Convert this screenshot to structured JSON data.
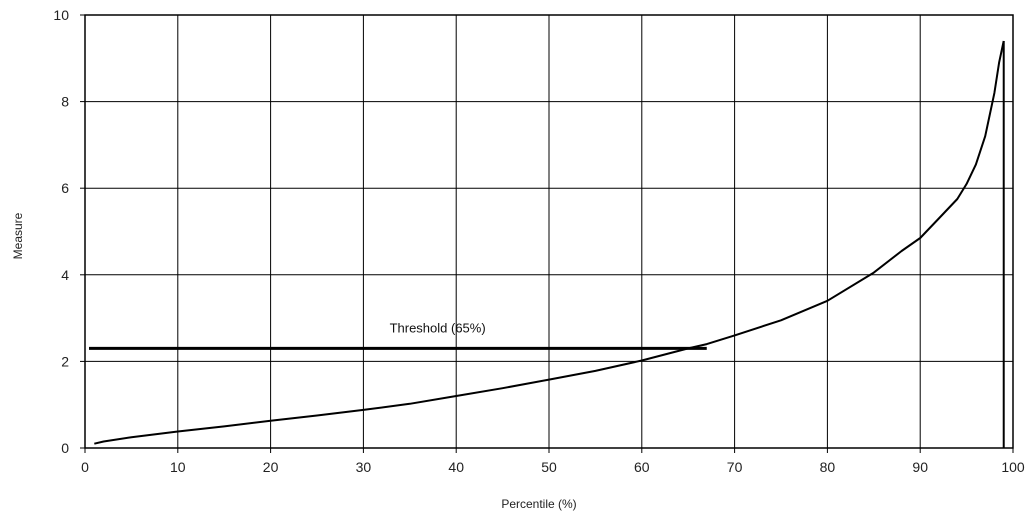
{
  "chart_data": {
    "type": "line",
    "xlabel": "Percentile (%)",
    "ylabel": "Measure",
    "xlim": [
      0,
      100
    ],
    "ylim": [
      0,
      10
    ],
    "xticks": [
      "0",
      "10",
      "20",
      "30",
      "40",
      "50",
      "60",
      "70",
      "80",
      "90",
      "100"
    ],
    "yticks": [
      "0",
      "2",
      "4",
      "6",
      "8",
      "10"
    ],
    "grid": true,
    "legend": "none",
    "series": [
      {
        "x": [
          1,
          2,
          5,
          10,
          15,
          20,
          25,
          30,
          35,
          40,
          45,
          50,
          55,
          60,
          65,
          67,
          70,
          75,
          80,
          85,
          88,
          90,
          92,
          94,
          95,
          96,
          97,
          98,
          98.5,
          99
        ],
        "y": [
          0.1,
          0.15,
          0.25,
          0.38,
          0.5,
          0.63,
          0.75,
          0.88,
          1.02,
          1.2,
          1.38,
          1.58,
          1.78,
          2.02,
          2.3,
          2.4,
          2.6,
          2.95,
          3.4,
          4.05,
          4.55,
          4.85,
          5.3,
          5.75,
          6.1,
          6.55,
          7.2,
          8.2,
          8.9,
          9.4
        ],
        "color": "#000000"
      }
    ],
    "drop_line": {
      "x": 99,
      "from_y": 0,
      "to_y": 9.4
    },
    "threshold": {
      "label": "Threshold (65%)",
      "y": 2.3,
      "x_start": 0,
      "x_end": 67,
      "label_x": 38,
      "color": "#000000"
    }
  }
}
